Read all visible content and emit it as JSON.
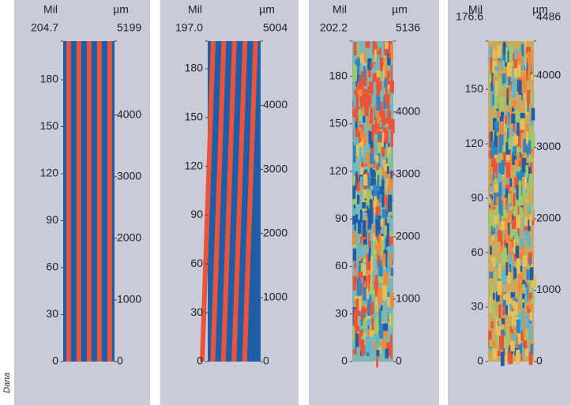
{
  "chart_data": [
    {
      "type": "image",
      "ylabel": "Mil",
      "y2label": "µm",
      "ylim": [
        0,
        204.7
      ],
      "yticks": [
        0,
        30,
        60,
        90,
        120,
        150,
        180,
        204.7
      ],
      "y2lim": [
        0,
        5199
      ],
      "y2ticks": [
        0,
        1000,
        2000,
        3000,
        4000,
        5199
      ]
    },
    {
      "type": "image",
      "ylabel": "Mil",
      "y2label": "µm",
      "ylim": [
        0,
        197
      ],
      "yticks": [
        0,
        30,
        60,
        90,
        120,
        150,
        180,
        {
          "value": 197,
          "label": "197.0"
        }
      ],
      "y2lim": [
        0,
        5004
      ],
      "y2ticks": [
        0,
        1000,
        2000,
        3000,
        4000,
        5004
      ]
    },
    {
      "type": "image",
      "ylabel": "Mil",
      "y2label": "µm",
      "ylim": [
        0,
        202.2
      ],
      "yticks": [
        0,
        30,
        60,
        90,
        120,
        150,
        180,
        202.2
      ],
      "y2lim": [
        0,
        5136
      ],
      "y2ticks": [
        0,
        1000,
        2000,
        3000,
        4000,
        5136
      ]
    },
    {
      "type": "image",
      "ylabel": "Mil",
      "y2label": "µm",
      "ylim": [
        0,
        176.6
      ],
      "yticks": [
        0,
        30,
        60,
        90,
        120,
        150,
        176.6
      ],
      "y2lim": [
        0,
        4486
      ],
      "y2ticks": [
        0,
        1000,
        2000,
        3000,
        4000,
        4486
      ]
    }
  ],
  "credit": "Dana"
}
